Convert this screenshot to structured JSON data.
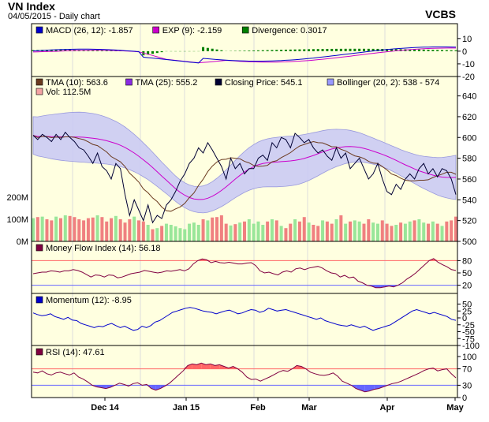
{
  "header": {
    "title": "VN Index",
    "subtitle": "04/05/2015 - Daily chart",
    "brand": "VCBS"
  },
  "colors": {
    "bg": "#ffffe0",
    "grid": "#dcdcdc",
    "price": "#000033",
    "tma10": "#6b3a1f",
    "tma25": "#cc00cc",
    "band": "#c8c8f5",
    "vol_up": "#99e699",
    "vol_down": "#f08080",
    "mfi": "#800040",
    "momentum": "#0000cc",
    "rsi": "#800040",
    "ob": "#ff6666",
    "os": "#6666ff",
    "macd": "#0000cc",
    "signal": "#cc00cc",
    "div": "#008000"
  },
  "chart_data": [
    {
      "type": "line",
      "title": "MACD",
      "legend": [
        {
          "name": "MACD (26, 12): -1.857",
          "color": "#0000cc"
        },
        {
          "name": "EXP (9): -2.159",
          "color": "#cc00cc"
        },
        {
          "name": "Divergence: 0.3017",
          "color": "#008000"
        }
      ],
      "y_ticks": [
        "10",
        "0",
        "-10",
        "-20"
      ],
      "ylim": [
        -20,
        13
      ]
    },
    {
      "type": "line",
      "title": "Price",
      "legend": [
        {
          "name": "TMA (10): 563.6",
          "color": "#6b3a1f"
        },
        {
          "name": "TMA (25): 555.2",
          "color": "#8a2be2"
        },
        {
          "name": "Closing Price: 545.1",
          "color": "#000033"
        },
        {
          "name": "Bollinger (20, 2): 538 - 574",
          "color": "#9999ff"
        },
        {
          "name": "Vol: 112.5M",
          "color": "#f4a3a3"
        }
      ],
      "y_ticks": [
        "640",
        "620",
        "600",
        "580",
        "560",
        "540",
        "520",
        "500"
      ],
      "vol_ticks": [
        "200M",
        "100M",
        "0M"
      ],
      "ylim": [
        500,
        645
      ],
      "close": [
        602,
        598,
        603,
        600,
        596,
        603,
        598,
        605,
        600,
        596,
        590,
        588,
        582,
        575,
        585,
        572,
        568,
        560,
        575,
        570,
        545,
        525,
        540,
        530,
        520,
        535,
        518,
        525,
        522,
        535,
        540,
        548,
        558,
        565,
        575,
        580,
        590,
        585,
        595,
        588,
        580,
        572,
        560,
        580,
        570,
        575,
        565,
        570,
        570,
        580,
        583,
        578,
        595,
        590,
        600,
        598,
        590,
        604,
        600,
        595,
        598,
        590,
        585,
        588,
        582,
        578,
        590,
        580,
        585,
        570,
        575,
        580,
        570,
        560,
        565,
        575,
        560,
        548,
        545,
        555,
        550,
        560,
        565,
        560,
        570,
        575,
        565,
        570,
        562,
        570,
        568,
        560,
        545
      ],
      "volume": [
        105,
        110,
        112,
        100,
        95,
        112,
        105,
        118,
        115,
        110,
        100,
        95,
        105,
        108,
        118,
        110,
        90,
        105,
        115,
        100,
        85,
        100,
        112,
        95,
        90,
        75,
        55,
        60,
        70,
        80,
        75,
        68,
        60,
        55,
        80,
        85,
        75,
        100,
        95,
        108,
        110,
        118,
        80,
        72,
        78,
        85,
        90,
        100,
        80,
        90,
        75,
        90,
        100,
        95,
        70,
        60,
        80,
        100,
        90,
        110,
        85,
        75,
        70,
        95,
        90,
        80,
        100,
        118,
        80,
        90,
        95,
        90,
        80,
        100,
        85,
        80,
        95,
        80,
        70,
        75,
        85,
        80,
        90,
        95,
        100,
        85,
        80,
        90,
        80,
        70,
        90,
        95,
        112
      ],
      "xlabel_ticks": [
        "Dec 14",
        "Jan 15",
        "Feb",
        "Mar",
        "Apr",
        "May"
      ]
    },
    {
      "type": "line",
      "title": "Money Flow Index",
      "legend": [
        {
          "name": "Money Flow Index (14): 56.18",
          "color": "#800040"
        }
      ],
      "y_ticks": [
        "80",
        "50",
        "20"
      ],
      "ylim": [
        0,
        100
      ],
      "values": [
        48,
        50,
        52,
        52,
        55,
        54,
        52,
        55,
        55,
        58,
        56,
        52,
        46,
        40,
        45,
        44,
        40,
        45,
        44,
        38,
        40,
        44,
        48,
        50,
        52,
        56,
        54,
        52,
        50,
        52,
        55,
        54,
        56,
        58,
        55,
        60,
        72,
        80,
        84,
        82,
        75,
        78,
        75,
        74,
        76,
        74,
        72,
        72,
        74,
        75,
        68,
        55,
        50,
        52,
        48,
        45,
        52,
        55,
        52,
        60,
        62,
        58,
        62,
        64,
        66,
        62,
        55,
        50,
        48,
        40,
        44,
        38,
        40,
        30,
        26,
        20,
        18,
        14,
        14,
        16,
        18,
        16,
        20,
        26,
        35,
        42,
        50,
        60,
        70,
        80,
        85,
        76,
        70,
        65,
        58,
        56
      ]
    },
    {
      "type": "line",
      "title": "Momentum",
      "legend": [
        {
          "name": "Momentum (12): -8.95",
          "color": "#0000cc"
        }
      ],
      "y_ticks": [
        "50",
        "25",
        "0",
        "-25",
        "-50",
        "-75",
        "-100"
      ],
      "ylim": [
        -100,
        60
      ],
      "values": [
        18,
        12,
        8,
        10,
        15,
        5,
        0,
        -5,
        2,
        -8,
        -10,
        -20,
        -25,
        -30,
        -35,
        -30,
        -32,
        -25,
        -20,
        -28,
        -35,
        -30,
        -38,
        -45,
        -42,
        -30,
        -35,
        -28,
        -15,
        -10,
        0,
        10,
        20,
        25,
        30,
        35,
        38,
        35,
        30,
        25,
        22,
        20,
        15,
        20,
        25,
        28,
        22,
        15,
        18,
        25,
        30,
        28,
        20,
        25,
        35,
        30,
        25,
        28,
        30,
        25,
        20,
        15,
        10,
        5,
        0,
        -5,
        0,
        -10,
        -15,
        -20,
        -25,
        -28,
        -30,
        -25,
        -30,
        -35,
        -30,
        -38,
        -45,
        -40,
        -35,
        -30,
        -25,
        -15,
        -5,
        5,
        15,
        25,
        30,
        25,
        20,
        15,
        20,
        15,
        10,
        5,
        -5,
        -9
      ]
    },
    {
      "type": "line",
      "title": "RSI",
      "legend": [
        {
          "name": "RSI (14): 47.61",
          "color": "#800040"
        }
      ],
      "y_ticks": [
        "100",
        "70",
        "30",
        "0"
      ],
      "ylim": [
        0,
        100
      ],
      "values": [
        62,
        60,
        65,
        58,
        55,
        60,
        62,
        58,
        55,
        60,
        50,
        45,
        38,
        30,
        26,
        24,
        22,
        25,
        30,
        35,
        32,
        28,
        34,
        36,
        30,
        32,
        22,
        18,
        22,
        28,
        35,
        45,
        55,
        65,
        78,
        82,
        80,
        84,
        80,
        82,
        78,
        80,
        76,
        72,
        76,
        70,
        62,
        50,
        44,
        45,
        40,
        45,
        50,
        56,
        62,
        66,
        64,
        70,
        78,
        76,
        70,
        62,
        58,
        55,
        54,
        56,
        60,
        52,
        40,
        35,
        30,
        22,
        18,
        14,
        16,
        20,
        22,
        26,
        30,
        34,
        36,
        40,
        45,
        50,
        55,
        60,
        66,
        70,
        72,
        65,
        68,
        70,
        58,
        48
      ]
    }
  ]
}
